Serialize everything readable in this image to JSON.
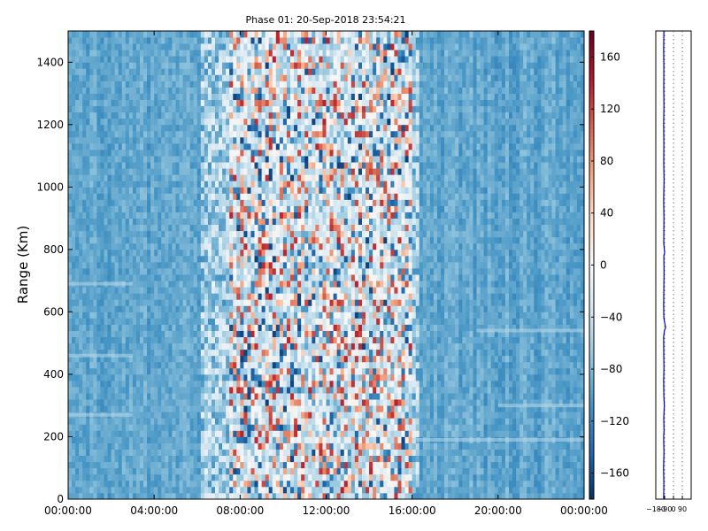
{
  "chart_data": [
    {
      "type": "heatmap",
      "title": "Phase 01: 20-Sep-2018 23:54:21",
      "ylabel": "Range (Km)",
      "xlabel": "",
      "x_tick_labels": [
        "00:00:00",
        "04:00:00",
        "08:00:00",
        "12:00:00",
        "16:00:00",
        "20:00:00",
        "00:00:00"
      ],
      "x_range_hours": [
        0,
        24
      ],
      "y_ticks": [
        0,
        200,
        400,
        600,
        800,
        1000,
        1200,
        1400
      ],
      "ylim": [
        0,
        1500
      ],
      "colorbar": {
        "colormap": "RdBu_r",
        "range": [
          -180,
          180
        ],
        "ticks": [
          -160,
          -120,
          -80,
          -40,
          0,
          40,
          80,
          120,
          160
        ],
        "tick_labels": [
          "−160",
          "−120",
          "−80",
          "−40",
          "0",
          "40",
          "80",
          "120",
          "160"
        ]
      },
      "description_values": {
        "background_phase_deg": -95,
        "noisy_band_hours": [
          7.5,
          16.0
        ],
        "noisy_band_phase_range_deg": [
          -180,
          180
        ],
        "layer_ranges_km": [
          {
            "hours_start": 0,
            "hours_end": 3,
            "range_km": 270
          },
          {
            "hours_start": 0,
            "hours_end": 3,
            "range_km": 460
          },
          {
            "hours_start": 0,
            "hours_end": 3,
            "range_km": 690
          },
          {
            "hours_start": 16,
            "hours_end": 24,
            "range_km": 190
          },
          {
            "hours_start": 20,
            "hours_end": 24,
            "range_km": 300
          },
          {
            "hours_start": 19,
            "hours_end": 24,
            "range_km": 540
          }
        ]
      },
      "grid": false
    },
    {
      "type": "line",
      "title": "",
      "x_tick_labels": [
        "−180",
        "−90",
        "0",
        "90"
      ],
      "xlim": [
        -180,
        180
      ],
      "ylim": [
        0,
        1500
      ],
      "gridlines_x": [
        -90,
        0,
        90
      ],
      "series": [
        {
          "color": "#0000cc",
          "points": [
            [
              -100,
              0
            ],
            [
              -98,
              50
            ],
            [
              -101,
              100
            ],
            [
              -97,
              150
            ],
            [
              -99,
              180
            ],
            [
              -100,
              200
            ],
            [
              -96,
              220
            ],
            [
              -99,
              260
            ],
            [
              -93,
              300
            ],
            [
              -98,
              330
            ],
            [
              -100,
              380
            ],
            [
              -97,
              420
            ],
            [
              -99,
              470
            ],
            [
              -100,
              520
            ],
            [
              -92,
              540
            ],
            [
              -80,
              550
            ],
            [
              -98,
              580
            ],
            [
              -100,
              620
            ],
            [
              -98,
              680
            ],
            [
              -96,
              730
            ],
            [
              -98,
              780
            ],
            [
              -90,
              790
            ],
            [
              -99,
              820
            ],
            [
              -97,
              900
            ],
            [
              -100,
              960
            ],
            [
              -96,
              1020
            ],
            [
              -99,
              1080
            ],
            [
              -98,
              1140
            ],
            [
              -100,
              1200
            ],
            [
              -97,
              1260
            ],
            [
              -99,
              1320
            ],
            [
              -98,
              1380
            ],
            [
              -100,
              1440
            ],
            [
              -98,
              1500
            ]
          ]
        }
      ],
      "colors": {
        "line": "#0000cc",
        "grid": "#555555"
      }
    }
  ]
}
